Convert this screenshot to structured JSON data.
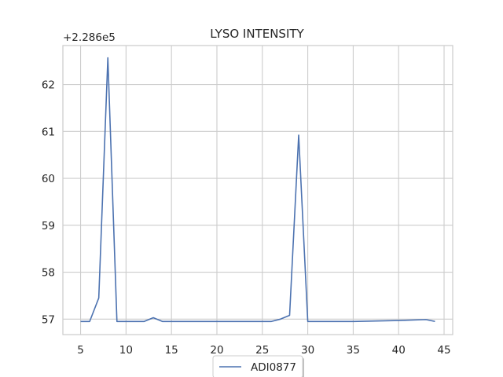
{
  "chart_data": {
    "type": "line",
    "title": "LYSO INTENSITY",
    "xlabel": "",
    "ylabel": "",
    "y_offset_label": "+2.286e5",
    "xlim": [
      3.05,
      45.95
    ],
    "ylim": [
      56.67,
      62.83
    ],
    "x_ticks": [
      5,
      10,
      15,
      20,
      25,
      30,
      35,
      40,
      45
    ],
    "y_ticks": [
      57,
      58,
      59,
      60,
      61,
      62
    ],
    "grid": true,
    "legend_placement": "bottom-center",
    "series": [
      {
        "name": "ADI0877",
        "color": "#4c72b0",
        "x": [
          5,
          6,
          7,
          8,
          9,
          10,
          11,
          12,
          13,
          14,
          15,
          20,
          25,
          26,
          27,
          28,
          29,
          30,
          31,
          32,
          33,
          34,
          35,
          40,
          43,
          44
        ],
        "y": [
          56.95,
          56.95,
          57.45,
          62.57,
          56.95,
          56.95,
          56.95,
          56.95,
          57.03,
          56.95,
          56.95,
          56.95,
          56.95,
          56.95,
          57.0,
          57.08,
          60.92,
          56.95,
          56.95,
          56.95,
          56.95,
          56.95,
          56.95,
          56.97,
          56.99,
          56.95
        ]
      }
    ]
  }
}
